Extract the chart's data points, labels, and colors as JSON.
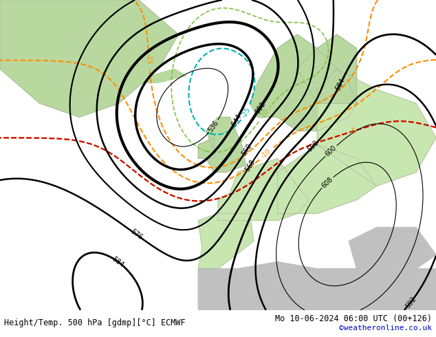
{
  "title_left": "Height/Temp. 500 hPa [gdmp][°C] ECMWF",
  "title_right": "Mo 10-06-2024 06:00 UTC (00+126)",
  "credit": "©weatheronline.co.uk",
  "sea_color": "#c8c8c8",
  "land_green_light": "#c8e6b0",
  "land_green_dark": "#b8d8a0",
  "land_grey": "#c0c0c0",
  "contour_height_color": "#000000",
  "contour_temp_warm_color": "#ff8c00",
  "contour_temp_cyan_color": "#00b0b0",
  "contour_temp_green_color": "#80c040",
  "contour_temp_red_color": "#cc0000",
  "fig_width": 6.34,
  "fig_height": 4.9,
  "dpi": 100,
  "bottom_bar_color": "#ffffff",
  "title_fontsize": 8.5
}
